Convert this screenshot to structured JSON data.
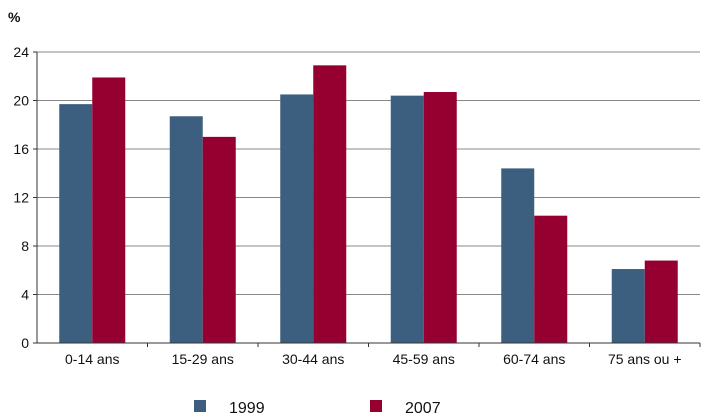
{
  "chart_data": {
    "type": "bar",
    "title": "",
    "xlabel": "",
    "ylabel": "%",
    "ylim": [
      0,
      24
    ],
    "yticks": [
      0,
      4,
      8,
      12,
      16,
      20,
      24
    ],
    "grid": true,
    "legend_position": "bottom",
    "categories": [
      "0-14 ans",
      "15-29 ans",
      "30-44 ans",
      "45-59 ans",
      "60-74 ans",
      "75 ans ou +"
    ],
    "series": [
      {
        "name": "1999",
        "color": "#3d5f7f",
        "values": [
          19.7,
          18.7,
          20.5,
          20.4,
          14.4,
          6.1
        ]
      },
      {
        "name": "2007",
        "color": "#960030",
        "values": [
          21.9,
          17.0,
          22.9,
          20.7,
          10.5,
          6.8
        ]
      }
    ]
  }
}
